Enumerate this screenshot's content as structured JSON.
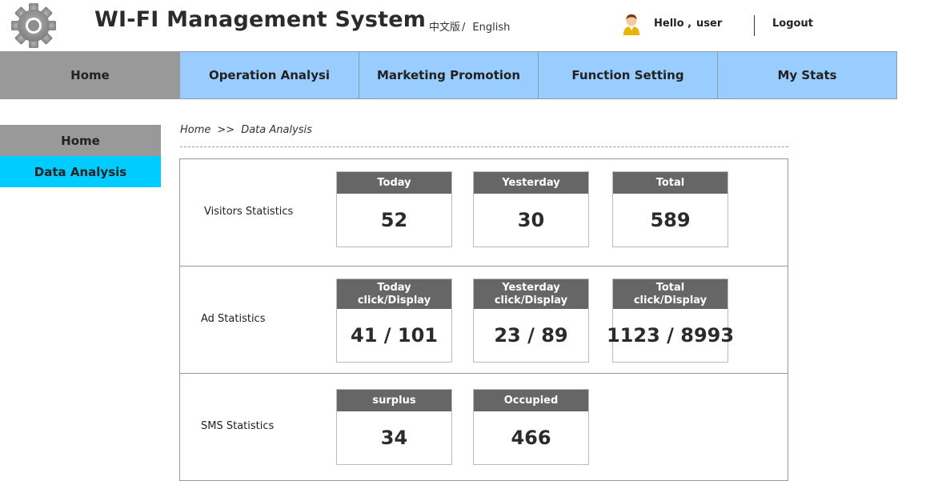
{
  "header": {
    "logo_icon": "gear-icon",
    "title": "WI-FI  Management System",
    "lang_cn": "中文版",
    "lang_separator": "/",
    "lang_en": "English",
    "avatar_icon": "user-avatar-icon",
    "greeting": "Hello ,",
    "username": "user",
    "logout_label": "Logout"
  },
  "nav": {
    "items": [
      {
        "label": "Home",
        "active": true
      },
      {
        "label": "Operation Analysi",
        "active": false
      },
      {
        "label": "Marketing Promotion",
        "active": false
      },
      {
        "label": "Function Setting",
        "active": false
      },
      {
        "label": "My Stats",
        "active": false
      }
    ]
  },
  "sidebar": {
    "items": [
      {
        "label": "Home"
      },
      {
        "label": "Data Analysis",
        "active": true
      }
    ]
  },
  "breadcrumb": {
    "root": "Home",
    "separator": ">>",
    "current": "Data Analysis"
  },
  "stats": {
    "visitors": {
      "label": "Visitors  Statistics",
      "cards": [
        {
          "title": "Today",
          "value": "52"
        },
        {
          "title": "Yesterday",
          "value": "30"
        },
        {
          "title": "Total",
          "value": "589"
        }
      ]
    },
    "ads": {
      "label": "Ad Statistics",
      "cards": [
        {
          "title": "Today\nclick/Display",
          "value": "41 / 101"
        },
        {
          "title": "Yesterday\nclick/Display",
          "value": "23 / 89"
        },
        {
          "title": "Total\nclick/Display",
          "value": "1123 / 8993"
        }
      ]
    },
    "sms": {
      "label": "SMS Statistics",
      "cards": [
        {
          "title": "surplus",
          "value": "34"
        },
        {
          "title": "Occupied",
          "value": "466"
        }
      ]
    }
  },
  "colors": {
    "nav_bg": "#99ccff",
    "active_gray": "#999999",
    "sidebar_active": "#00ccff",
    "card_header": "#666666"
  }
}
